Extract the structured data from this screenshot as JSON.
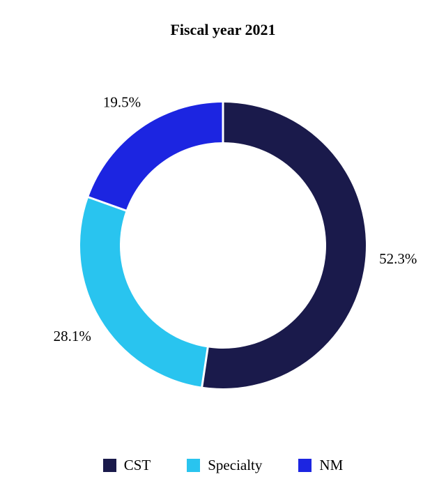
{
  "chart_data": {
    "type": "pie",
    "subtype": "donut",
    "title": "Fiscal year 2021",
    "legend_position": "bottom",
    "direction": "clockwise",
    "start_angle": "top",
    "grid": false,
    "segments": [
      {
        "label": "CST",
        "value": 52.3,
        "display": "52.3%",
        "color": "#1a1a4b"
      },
      {
        "label": "Specialty",
        "value": 28.1,
        "display": "28.1%",
        "color": "#29c4ef"
      },
      {
        "label": "NM",
        "value": 19.5,
        "display": "19.5%",
        "color": "#1c25e1"
      }
    ]
  }
}
